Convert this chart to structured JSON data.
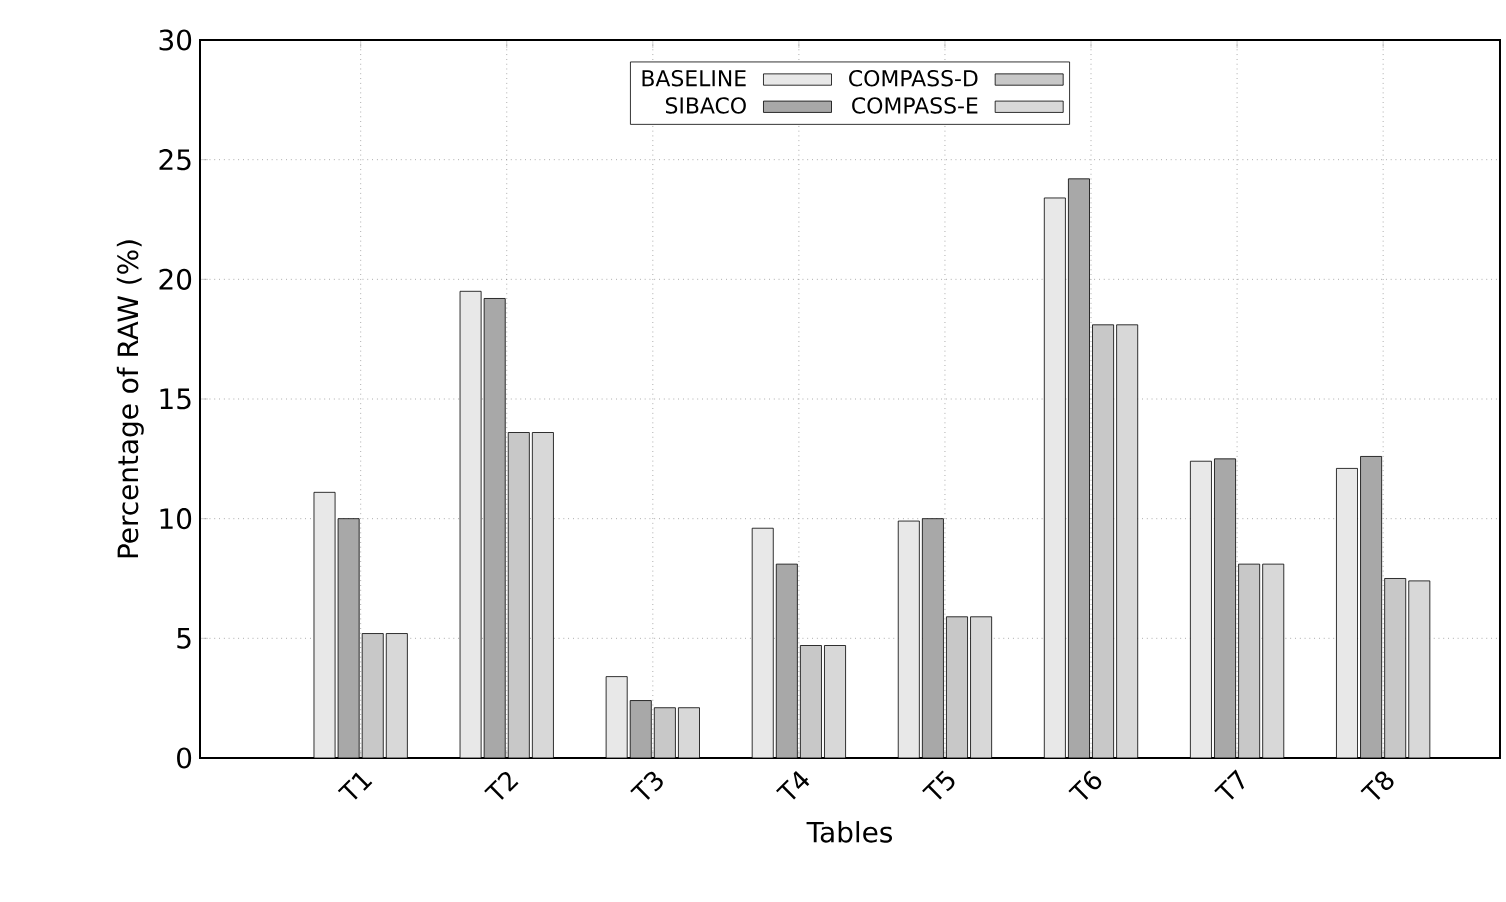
{
  "chart_data": {
    "type": "bar",
    "xlabel": "Tables",
    "ylabel": "Percentage of RAW (%)",
    "categories": [
      "T1",
      "T2",
      "T3",
      "T4",
      "T5",
      "T6",
      "T7",
      "T8"
    ],
    "series": [
      {
        "name": "BASELINE",
        "color": "#e8e8e8",
        "values": [
          11.1,
          19.5,
          3.4,
          9.6,
          9.9,
          23.4,
          12.4,
          12.1
        ]
      },
      {
        "name": "SIBACO",
        "color": "#a8a8a8",
        "values": [
          10.0,
          19.2,
          2.4,
          8.1,
          10.0,
          24.2,
          12.5,
          12.6
        ]
      },
      {
        "name": "COMPASS-D",
        "color": "#c8c8c8",
        "values": [
          5.2,
          13.6,
          2.1,
          4.7,
          5.9,
          18.1,
          8.1,
          7.5
        ]
      },
      {
        "name": "COMPASS-E",
        "color": "#d8d8d8",
        "values": [
          5.2,
          13.6,
          2.1,
          4.7,
          5.9,
          18.1,
          8.1,
          7.4
        ]
      }
    ],
    "ylim": [
      0,
      30
    ],
    "yticks": [
      0,
      5,
      10,
      15,
      20,
      25,
      30
    ],
    "grid": true,
    "legend": "top"
  }
}
